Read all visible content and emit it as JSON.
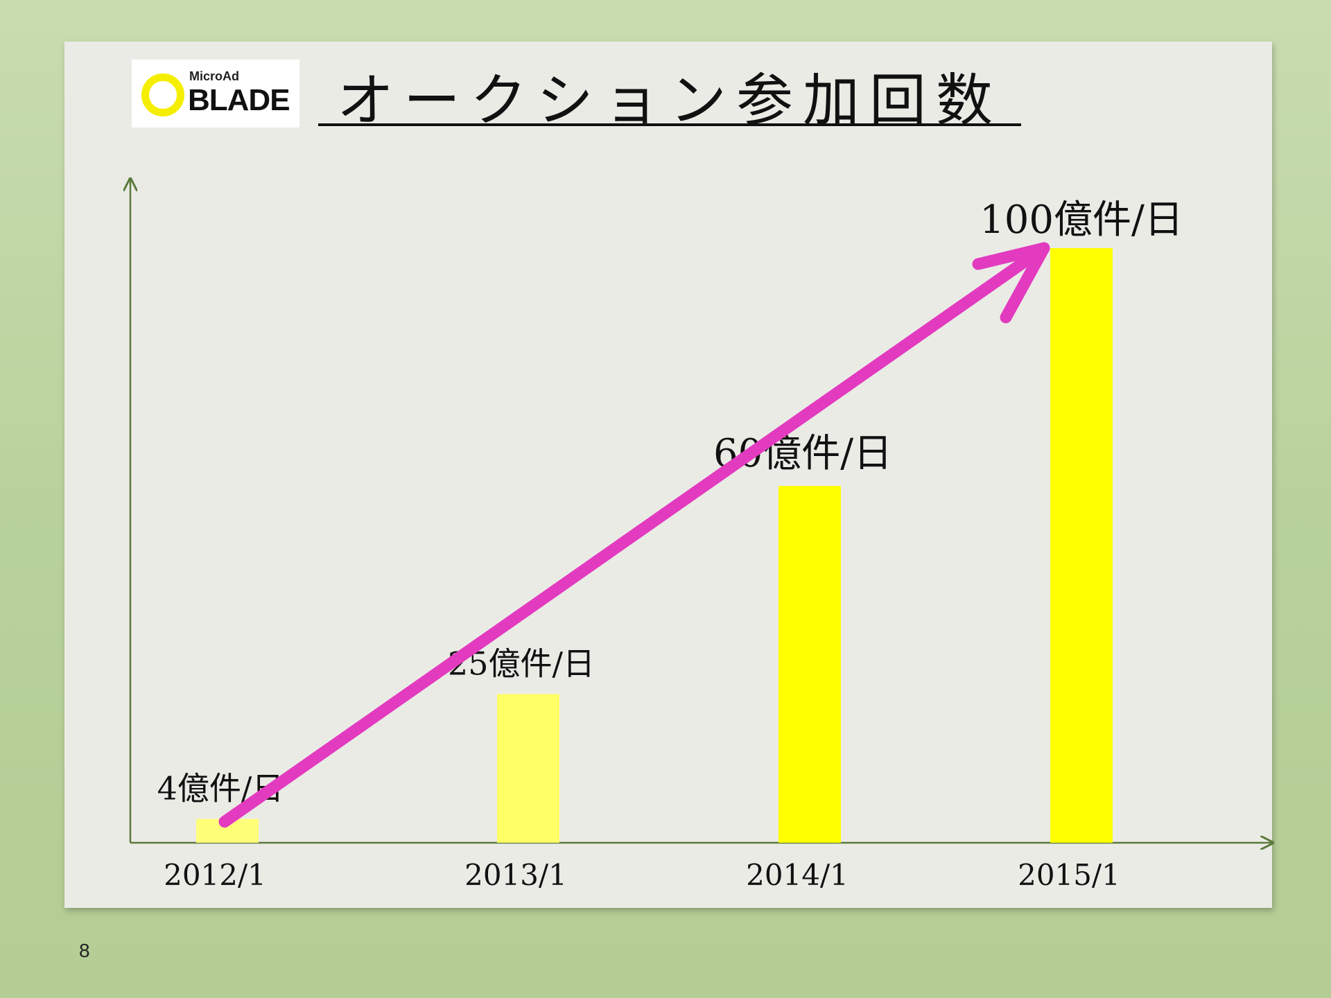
{
  "logo": {
    "line1": "MicroAd",
    "line2": "BLADE"
  },
  "page_number": "8",
  "chart_data": {
    "type": "bar",
    "title": "オークション参加回数",
    "categories": [
      "2012/1",
      "2013/1",
      "2014/1",
      "2015/1"
    ],
    "values": [
      4,
      25,
      60,
      100
    ],
    "data_labels": [
      "4億件/日",
      "25億件/日",
      "60億件/日",
      "100億件/日"
    ],
    "unit": "億件/日",
    "ylim": [
      0,
      100
    ],
    "grid": false,
    "bar_colors": [
      "#ffff7a",
      "#ffff66",
      "#ffff00",
      "#ffff00"
    ],
    "trend_arrow_color": "#e23bbf",
    "axis_color": "#5a7a3a"
  }
}
